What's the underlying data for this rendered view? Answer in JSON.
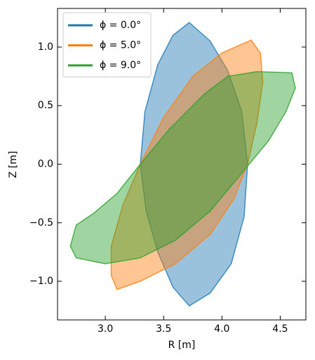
{
  "chart_data": {
    "type": "area",
    "xlabel": "R [m]",
    "ylabel": "Z [m]",
    "xlim": [
      2.59,
      4.72
    ],
    "ylim": [
      -1.33,
      1.33
    ],
    "xticks": [
      {
        "value": 3.0,
        "label": "3.0"
      },
      {
        "value": 3.5,
        "label": "3.5"
      },
      {
        "value": 4.0,
        "label": "4.0"
      },
      {
        "value": 4.5,
        "label": "4.5"
      }
    ],
    "yticks": [
      {
        "value": -1.0,
        "label": "−1.0"
      },
      {
        "value": -0.5,
        "label": "−0.5"
      },
      {
        "value": 0.0,
        "label": "0.0"
      },
      {
        "value": 0.5,
        "label": "0.5"
      },
      {
        "value": 1.0,
        "label": "1.0"
      }
    ],
    "legend": "upper left",
    "series": [
      {
        "name": "ϕ = 0.0°",
        "color": "#1f77b4",
        "x": [
          3.72,
          3.9,
          4.05,
          4.17,
          4.22,
          4.19,
          4.08,
          3.9,
          3.72,
          3.58,
          3.45,
          3.35,
          3.3,
          3.34,
          3.45,
          3.58
        ],
        "values": [
          1.21,
          1.05,
          0.8,
          0.45,
          0.0,
          -0.45,
          -0.85,
          -1.1,
          -1.21,
          -1.05,
          -0.75,
          -0.4,
          0.0,
          0.45,
          0.85,
          1.1
        ]
      },
      {
        "name": "ϕ = 5.0°",
        "color": "#ff7f0e",
        "x": [
          4.25,
          4.33,
          4.35,
          4.3,
          4.22,
          4.1,
          3.9,
          3.6,
          3.3,
          3.1,
          3.05,
          3.05,
          3.15,
          3.3,
          3.5,
          3.75,
          4.0
        ],
        "values": [
          1.06,
          0.95,
          0.7,
          0.35,
          0.0,
          -0.3,
          -0.6,
          -0.85,
          -1.0,
          -1.07,
          -0.95,
          -0.7,
          -0.35,
          0.0,
          0.4,
          0.75,
          0.95
        ]
      },
      {
        "name": "ϕ = 9.0°",
        "color": "#2ca02c",
        "x": [
          4.3,
          4.6,
          4.63,
          4.55,
          4.4,
          4.15,
          3.9,
          3.6,
          3.3,
          3.0,
          2.75,
          2.7,
          2.75,
          2.9,
          3.1,
          3.3,
          3.55,
          3.85,
          4.05
        ],
        "values": [
          0.79,
          0.78,
          0.65,
          0.45,
          0.2,
          -0.1,
          -0.4,
          -0.65,
          -0.8,
          -0.85,
          -0.8,
          -0.7,
          -0.52,
          -0.42,
          -0.25,
          0.0,
          0.3,
          0.6,
          0.75
        ]
      }
    ]
  }
}
